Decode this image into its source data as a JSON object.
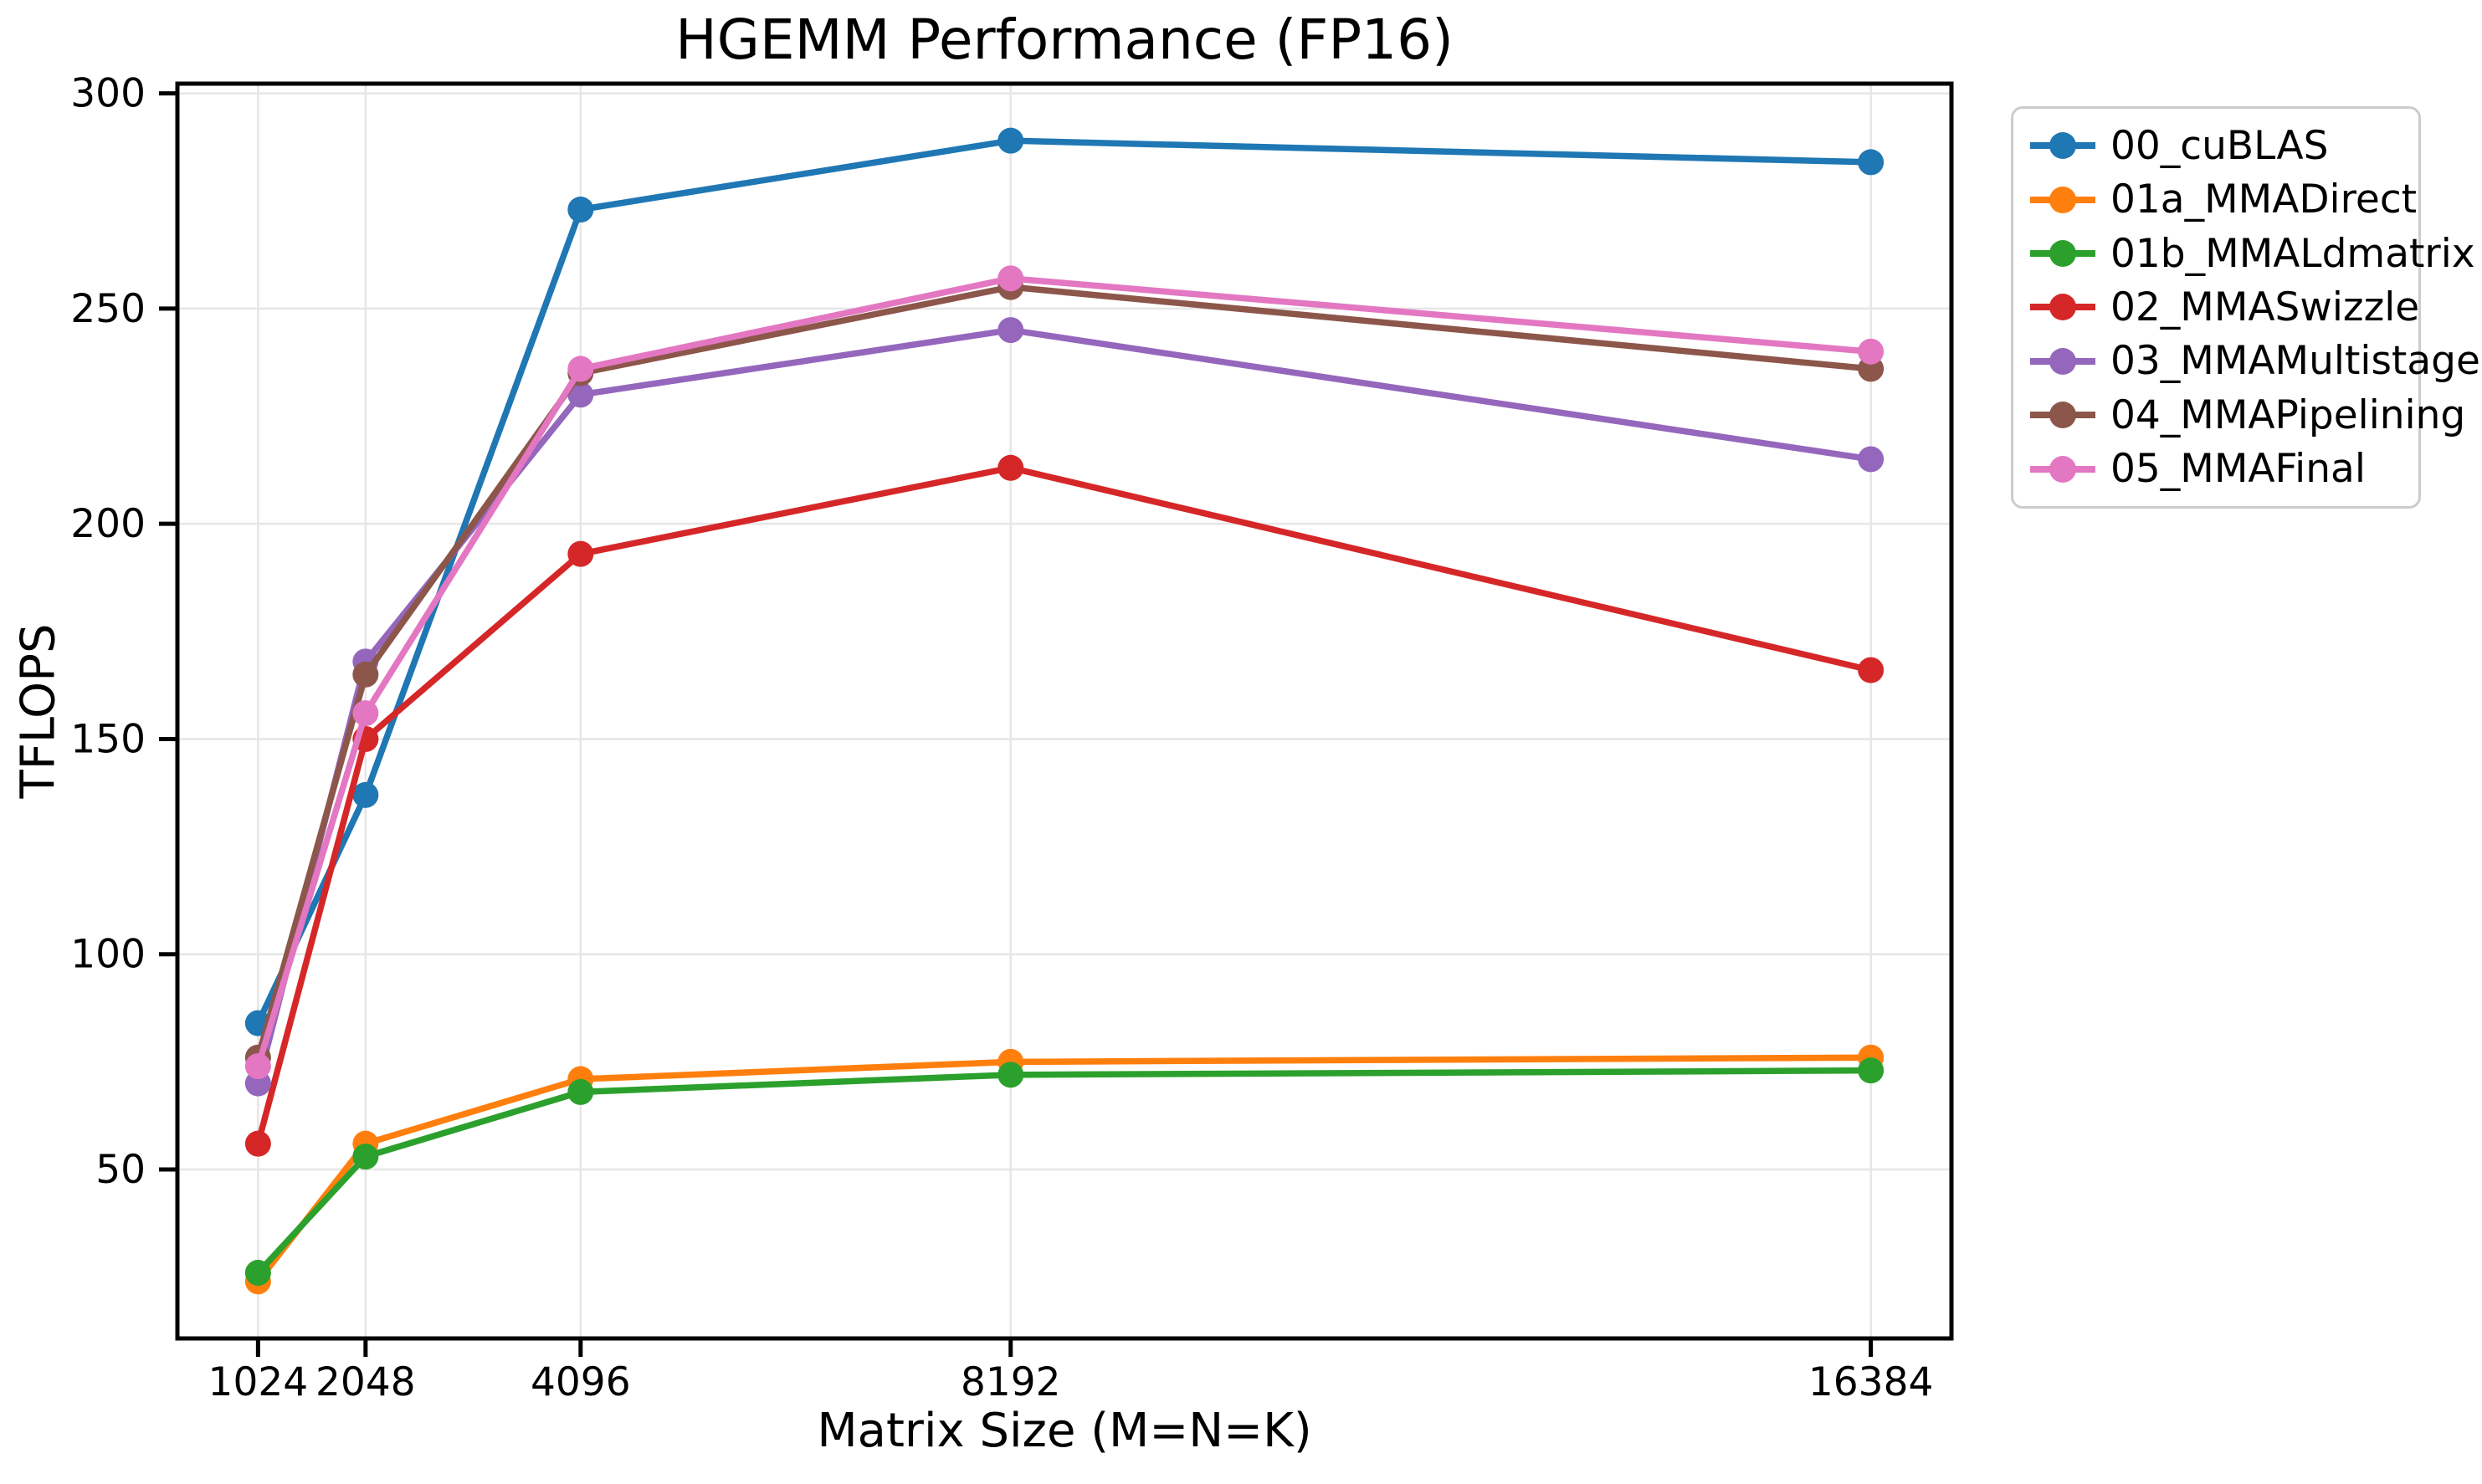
{
  "chart_data": {
    "type": "line",
    "title": "HGEMM Performance (FP16)",
    "xlabel": "Matrix Size (M=N=K)",
    "ylabel": "TFLOPS",
    "x": [
      1024,
      2048,
      4096,
      8192,
      16384
    ],
    "x_tick_labels": [
      "1024",
      "2048",
      "4096",
      "8192",
      "16384"
    ],
    "y_ticks": [
      50,
      100,
      150,
      200,
      250,
      300
    ],
    "xlim": [
      256,
      17152
    ],
    "ylim": [
      10.75,
      302.25
    ],
    "grid": true,
    "grid_color": "#e6e6e6",
    "axis_color": "#000000",
    "legend_position": "outside-upper-right",
    "legend_border_color": "#cccccc",
    "series": [
      {
        "name": "00_cuBLAS",
        "color": "#1f77b4",
        "values": [
          84,
          137,
          273,
          289,
          284
        ]
      },
      {
        "name": "01a_MMADirect",
        "color": "#ff7f0e",
        "values": [
          24,
          56,
          71,
          75,
          76
        ]
      },
      {
        "name": "01b_MMALdmatrix",
        "color": "#2ca02c",
        "values": [
          26,
          53,
          68,
          72,
          73
        ]
      },
      {
        "name": "02_MMASwizzle",
        "color": "#d62728",
        "values": [
          56,
          150,
          193,
          213,
          166
        ]
      },
      {
        "name": "03_MMAMultistage",
        "color": "#9467bd",
        "values": [
          70,
          168,
          230,
          245,
          215
        ]
      },
      {
        "name": "04_MMAPipelining",
        "color": "#8c564b",
        "values": [
          76,
          165,
          235,
          255,
          236
        ]
      },
      {
        "name": "05_MMAFinal",
        "color": "#e377c2",
        "values": [
          74,
          156,
          236,
          257,
          240
        ]
      }
    ]
  }
}
